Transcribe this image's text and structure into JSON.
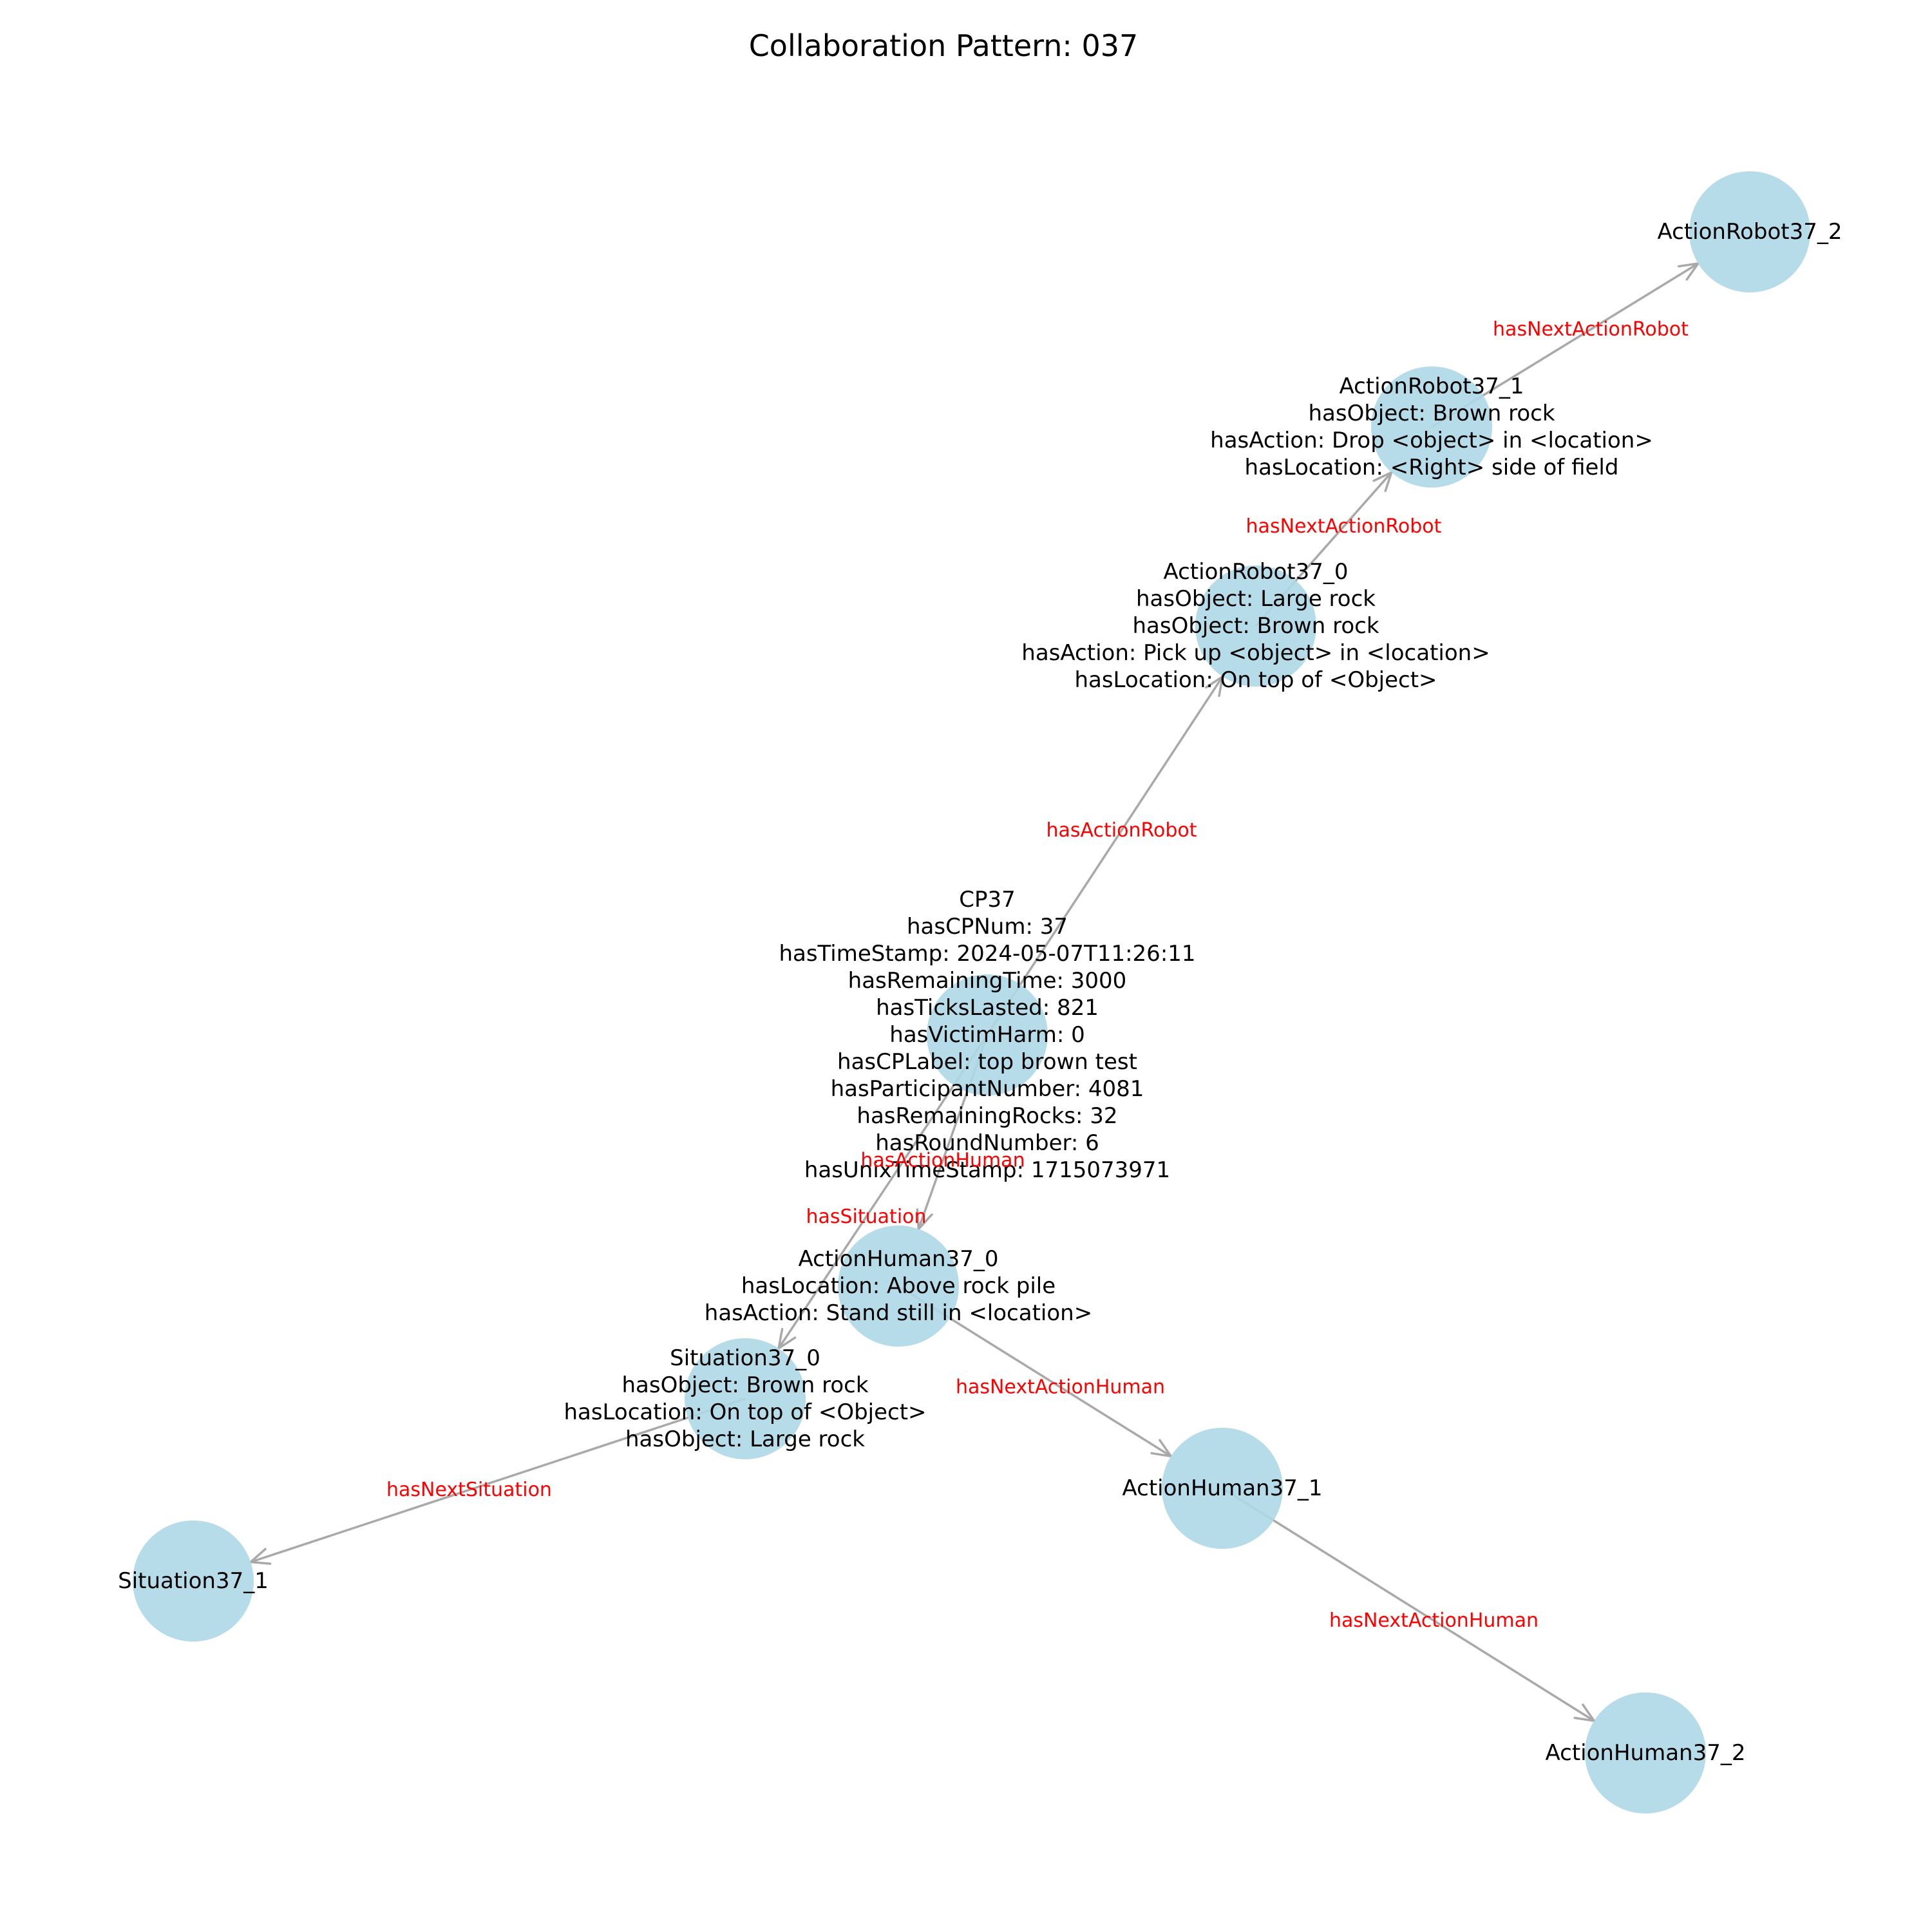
{
  "title": "Collaboration Pattern: 037",
  "colors": {
    "node": "#add8e6",
    "edge": "#a9a9a9",
    "edge_label": "#ff0000",
    "text": "#000000"
  },
  "nodes": [
    {
      "id": "ActionRobot37_2",
      "lines": [
        "ActionRobot37_2"
      ]
    },
    {
      "id": "ActionRobot37_1",
      "lines": [
        "ActionRobot37_1",
        "hasObject: Brown rock",
        "hasAction: Drop <object> in <location>",
        "hasLocation: <Right> side of field"
      ]
    },
    {
      "id": "ActionRobot37_0",
      "lines": [
        "ActionRobot37_0",
        "hasObject: Large rock",
        "hasObject: Brown rock",
        "hasAction: Pick up <object> in <location>",
        "hasLocation: On top of <Object>"
      ]
    },
    {
      "id": "CP37",
      "lines": [
        "CP37",
        "hasCPNum: 37",
        "hasTimeStamp: 2024-05-07T11:26:11",
        "hasRemainingTime: 3000",
        "hasTicksLasted: 821",
        "hasVictimHarm: 0",
        "hasCPLabel: top brown test",
        "hasParticipantNumber: 4081",
        "hasRemainingRocks: 32",
        "hasRoundNumber: 6",
        "hasUnixTimeStamp: 1715073971"
      ]
    },
    {
      "id": "ActionHuman37_0",
      "lines": [
        "ActionHuman37_0",
        "hasLocation: Above rock pile",
        "hasAction: Stand still in <location>"
      ]
    },
    {
      "id": "Situation37_0",
      "lines": [
        "Situation37_0",
        "hasObject: Brown rock",
        "hasLocation: On top of <Object>",
        "hasObject: Large rock"
      ]
    },
    {
      "id": "ActionHuman37_1",
      "lines": [
        "ActionHuman37_1"
      ]
    },
    {
      "id": "Situation37_1",
      "lines": [
        "Situation37_1"
      ]
    },
    {
      "id": "ActionHuman37_2",
      "lines": [
        "ActionHuman37_2"
      ]
    }
  ],
  "edges": [
    {
      "source": "ActionRobot37_1",
      "target": "ActionRobot37_2",
      "label": "hasNextActionRobot"
    },
    {
      "source": "ActionRobot37_0",
      "target": "ActionRobot37_1",
      "label": "hasNextActionRobot"
    },
    {
      "source": "CP37",
      "target": "ActionRobot37_0",
      "label": "hasActionRobot"
    },
    {
      "source": "CP37",
      "target": "ActionHuman37_0",
      "label": "hasActionHuman"
    },
    {
      "source": "CP37",
      "target": "Situation37_0",
      "label": "hasSituation"
    },
    {
      "source": "ActionHuman37_0",
      "target": "ActionHuman37_1",
      "label": "hasNextActionHuman"
    },
    {
      "source": "ActionHuman37_1",
      "target": "ActionHuman37_2",
      "label": "hasNextActionHuman"
    },
    {
      "source": "Situation37_0",
      "target": "Situation37_1",
      "label": "hasNextSituation"
    }
  ]
}
